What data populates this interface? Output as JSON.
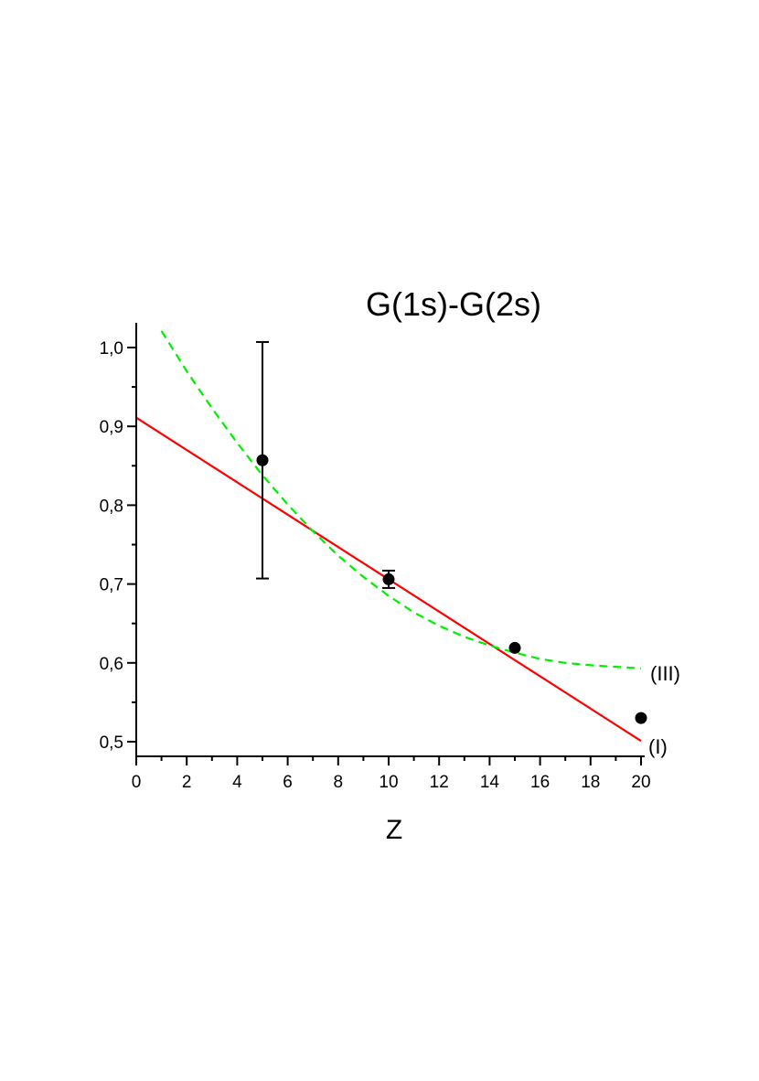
{
  "chart_data": {
    "type": "scatter",
    "title": "G(1s)-G(2s)",
    "xlabel": "Z",
    "ylabel": "",
    "xlim": [
      0,
      20.5
    ],
    "ylim": [
      0.48,
      1.03
    ],
    "x_ticks": [
      0,
      2,
      4,
      6,
      8,
      10,
      12,
      14,
      16,
      18,
      20
    ],
    "x_tick_labels": [
      "0",
      "2",
      "4",
      "6",
      "8",
      "10",
      "12",
      "14",
      "16",
      "18",
      "20"
    ],
    "y_ticks": [
      0.5,
      0.6,
      0.7,
      0.8,
      0.9,
      1.0
    ],
    "y_tick_labels": [
      "0,5",
      "0,6",
      "0,7",
      "0,8",
      "0,9",
      "1,0"
    ],
    "grid": false,
    "points": [
      {
        "x": 5,
        "y": 0.857,
        "err": 0.15
      },
      {
        "x": 10,
        "y": 0.706,
        "err": 0.011
      },
      {
        "x": 15,
        "y": 0.619,
        "err": 0
      },
      {
        "x": 20,
        "y": 0.53,
        "err": 0
      }
    ],
    "series": [
      {
        "name": "(I)",
        "style": "solid",
        "color": "#ff0000",
        "x": [
          0,
          20
        ],
        "y": [
          0.911,
          0.501
        ]
      },
      {
        "name": "(III)",
        "style": "dashed",
        "color": "#00ee00",
        "x": [
          1,
          2,
          3,
          4,
          5,
          6,
          7,
          8,
          9,
          10,
          11,
          12,
          13,
          14,
          15,
          16,
          17,
          18,
          19,
          20
        ],
        "y": [
          1.021,
          0.97,
          0.923,
          0.879,
          0.838,
          0.801,
          0.767,
          0.736,
          0.709,
          0.685,
          0.664,
          0.647,
          0.633,
          0.622,
          0.613,
          0.605,
          0.6,
          0.597,
          0.595,
          0.593
        ]
      }
    ]
  }
}
